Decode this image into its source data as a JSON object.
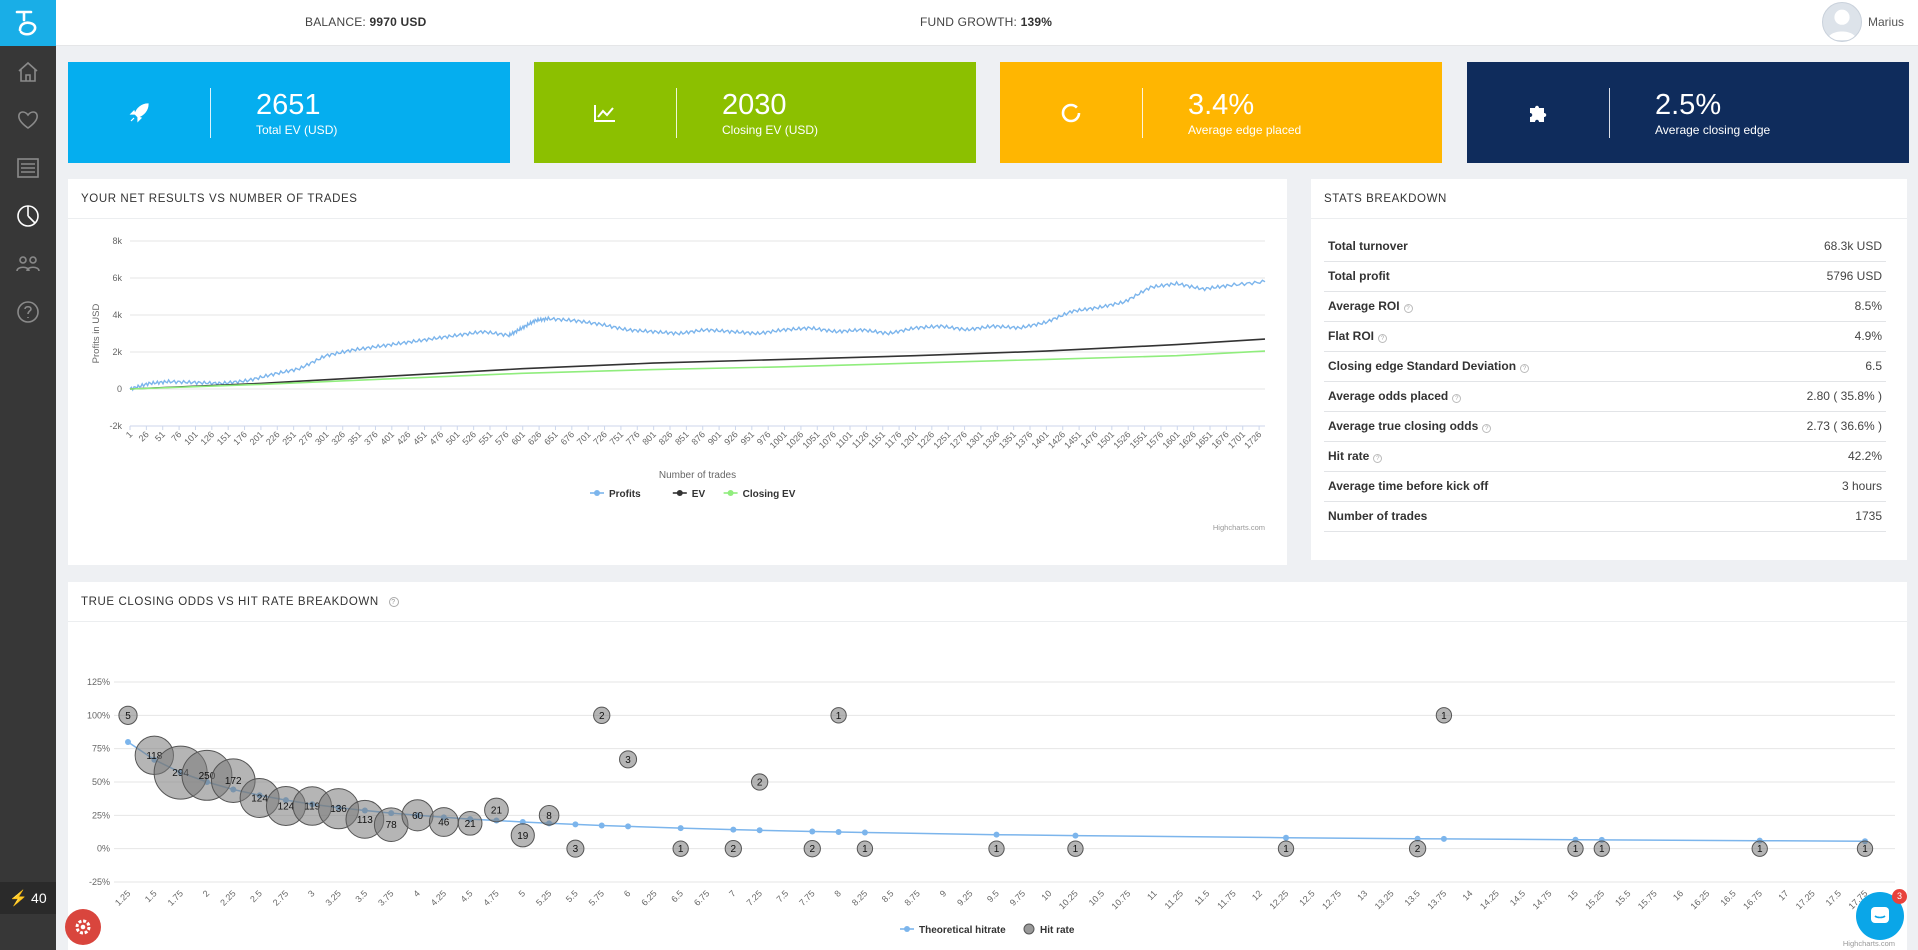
{
  "header": {
    "balance_label": "BALANCE:",
    "balance_value": "9970 USD",
    "growth_label": "FUND GROWTH:",
    "growth_value": "139%",
    "user_name": "Marius"
  },
  "sidebar": {
    "items": [
      {
        "icon": "home-icon"
      },
      {
        "icon": "heart-icon"
      },
      {
        "icon": "list-icon"
      },
      {
        "icon": "pie-chart-icon",
        "active": true
      },
      {
        "icon": "group-icon"
      },
      {
        "icon": "help-icon"
      }
    ],
    "credit_value": "40"
  },
  "kpis": [
    {
      "value": "2651",
      "label": "Total EV (USD)",
      "color": "#05aeef",
      "icon": "rocket-icon"
    },
    {
      "value": "2030",
      "label": "Closing EV (USD)",
      "color": "#8cc000",
      "icon": "line-chart-icon"
    },
    {
      "value": "3.4%",
      "label": "Average edge placed",
      "color": "#ffb601",
      "icon": "circle-icon"
    },
    {
      "value": "2.5%",
      "label": "Average closing edge",
      "color": "#0f2c5c",
      "icon": "puzzle-icon"
    }
  ],
  "net_results": {
    "title": "YOUR NET RESULTS VS NUMBER OF TRADES",
    "credits": "Highcharts.com"
  },
  "stats": {
    "title": "STATS BREAKDOWN",
    "rows": [
      {
        "label": "Total turnover",
        "value": "68.3k USD",
        "help": false
      },
      {
        "label": "Total profit",
        "value": "5796 USD",
        "help": false
      },
      {
        "label": "Average ROI",
        "value": "8.5%",
        "help": true
      },
      {
        "label": "Flat ROI",
        "value": "4.9%",
        "help": true
      },
      {
        "label": "Closing edge Standard Deviation",
        "value": "6.5",
        "help": true
      },
      {
        "label": "Average odds placed",
        "value": "2.80 ( 35.8% )",
        "help": true
      },
      {
        "label": "Average true closing odds",
        "value": "2.73 ( 36.6% )",
        "help": true
      },
      {
        "label": "Hit rate",
        "value": "42.2%",
        "help": true
      },
      {
        "label": "Average time before kick off",
        "value": "3 hours",
        "help": false
      },
      {
        "label": "Number of trades",
        "value": "1735",
        "help": false
      }
    ]
  },
  "odds_hitrate": {
    "title": "TRUE CLOSING ODDS VS HIT RATE BREAKDOWN",
    "credits": "Highcharts.com"
  },
  "chat_badge": "3",
  "chart_data": [
    {
      "type": "line",
      "ylabel": "Profits in USD",
      "xlabel": "Number of trades",
      "ylim": [
        -2000,
        8000
      ],
      "y_ticks": [
        -2000,
        0,
        2000,
        4000,
        6000,
        8000
      ],
      "y_tick_labels": [
        "-2k",
        "0",
        "2k",
        "4k",
        "6k",
        "8k"
      ],
      "x_range": [
        1,
        1735
      ],
      "x_tick_labels": [
        "1",
        "26",
        "51",
        "76",
        "101",
        "126",
        "151",
        "176",
        "201",
        "226",
        "251",
        "276",
        "301",
        "326",
        "351",
        "376",
        "401",
        "426",
        "451",
        "476",
        "501",
        "526",
        "551",
        "576",
        "601",
        "626",
        "651",
        "676",
        "701",
        "726",
        "751",
        "776",
        "801",
        "826",
        "851",
        "876",
        "901",
        "926",
        "951",
        "976",
        "1001",
        "1026",
        "1051",
        "1076",
        "1101",
        "1126",
        "1151",
        "1176",
        "1201",
        "1226",
        "1251",
        "1276",
        "1301",
        "1326",
        "1351",
        "1376",
        "1401",
        "1426",
        "1451",
        "1476",
        "1501",
        "1526",
        "1551",
        "1576",
        "1601",
        "1626",
        "1651",
        "1676",
        "1701",
        "1726"
      ],
      "grid": true,
      "legend": "bottom-center",
      "series": [
        {
          "name": "Profits",
          "color": "#7cb5ec",
          "x": [
            1,
            30,
            60,
            100,
            140,
            180,
            220,
            260,
            300,
            340,
            380,
            420,
            460,
            500,
            540,
            580,
            600,
            620,
            640,
            680,
            720,
            760,
            800,
            840,
            880,
            920,
            960,
            1000,
            1040,
            1080,
            1120,
            1160,
            1200,
            1240,
            1280,
            1320,
            1360,
            1400,
            1440,
            1480,
            1520,
            1560,
            1600,
            1640,
            1680,
            1735
          ],
          "y": [
            0,
            300,
            400,
            350,
            300,
            450,
            800,
            1100,
            1800,
            2100,
            2300,
            2500,
            2700,
            2900,
            3100,
            2900,
            3300,
            3700,
            3800,
            3700,
            3500,
            3200,
            3100,
            3000,
            3200,
            3100,
            3000,
            3200,
            3300,
            3100,
            3200,
            3000,
            3300,
            3400,
            3200,
            3400,
            3300,
            3600,
            4200,
            4400,
            4700,
            5500,
            5700,
            5400,
            5600,
            5800
          ]
        },
        {
          "name": "EV",
          "color": "#333333",
          "x": [
            1,
            200,
            400,
            600,
            800,
            1000,
            1200,
            1400,
            1600,
            1735
          ],
          "y": [
            0,
            300,
            700,
            1100,
            1400,
            1600,
            1800,
            2050,
            2400,
            2700
          ]
        },
        {
          "name": "Closing EV",
          "color": "#90ed7d",
          "x": [
            1,
            200,
            400,
            600,
            800,
            1000,
            1200,
            1400,
            1600,
            1735
          ],
          "y": [
            0,
            250,
            550,
            850,
            1050,
            1200,
            1400,
            1600,
            1800,
            2050
          ]
        }
      ]
    },
    {
      "type": "scatter",
      "ylim": [
        -25,
        125
      ],
      "y_ticks": [
        -25,
        0,
        25,
        50,
        75,
        100,
        125
      ],
      "y_tick_labels": [
        "-25%",
        "0%",
        "25%",
        "50%",
        "75%",
        "100%",
        "125%"
      ],
      "x_range": [
        1.25,
        17.75
      ],
      "x_tick_labels": [
        "1.25",
        "1.5",
        "1.75",
        "2",
        "2.25",
        "2.5",
        "2.75",
        "3",
        "3.25",
        "3.5",
        "3.75",
        "4",
        "4.25",
        "4.5",
        "4.75",
        "5",
        "5.25",
        "5.5",
        "5.75",
        "6",
        "6.25",
        "6.5",
        "6.75",
        "7",
        "7.25",
        "7.5",
        "7.75",
        "8",
        "8.25",
        "8.5",
        "8.75",
        "9",
        "9.25",
        "9.5",
        "9.75",
        "10",
        "10.25",
        "10.5",
        "10.75",
        "11",
        "11.25",
        "11.5",
        "11.75",
        "12",
        "12.25",
        "12.5",
        "12.75",
        "13",
        "13.25",
        "13.5",
        "13.75",
        "14",
        "14.25",
        "14.5",
        "14.75",
        "15",
        "15.25",
        "15.5",
        "15.75",
        "16",
        "16.25",
        "16.5",
        "16.75",
        "17",
        "17.25",
        "17.5",
        "17.75"
      ],
      "grid": true,
      "legend": "bottom-center",
      "series": [
        {
          "name": "Theoretical hitrate",
          "color": "#7cb5ec",
          "x": [
            1.25,
            1.5,
            1.75,
            2,
            2.25,
            2.5,
            2.75,
            3,
            3.25,
            3.5,
            3.75,
            4,
            4.25,
            4.5,
            4.75,
            5,
            5.25,
            5.5,
            5.75,
            6,
            6.5,
            7,
            7.25,
            7.75,
            8,
            8.25,
            9.5,
            10.25,
            12.25,
            13.5,
            13.75,
            15,
            15.25,
            16.75,
            17.75
          ],
          "y": [
            80,
            66.7,
            57.1,
            50,
            44.4,
            40,
            36.4,
            33.3,
            30.8,
            28.6,
            26.7,
            25,
            23.5,
            22.2,
            21.1,
            20,
            19,
            18.2,
            17.4,
            16.7,
            15.4,
            14.3,
            13.8,
            12.9,
            12.5,
            12.1,
            10.5,
            9.8,
            8.2,
            7.4,
            7.3,
            6.7,
            6.6,
            6,
            5.6
          ]
        },
        {
          "name": "Hit rate",
          "color": "#808080",
          "points": [
            {
              "x": 1.25,
              "y": 100,
              "n": "5"
            },
            {
              "x": 1.5,
              "y": 70,
              "n": "118"
            },
            {
              "x": 1.75,
              "y": 57,
              "n": "294"
            },
            {
              "x": 2,
              "y": 55,
              "n": "250"
            },
            {
              "x": 2.25,
              "y": 51,
              "n": "172"
            },
            {
              "x": 2.5,
              "y": 38,
              "n": "124"
            },
            {
              "x": 2.75,
              "y": 32,
              "n": "124"
            },
            {
              "x": 3,
              "y": 32,
              "n": "119"
            },
            {
              "x": 3.25,
              "y": 30,
              "n": "136"
            },
            {
              "x": 3.5,
              "y": 22,
              "n": "113"
            },
            {
              "x": 3.75,
              "y": 18,
              "n": "78"
            },
            {
              "x": 4,
              "y": 25,
              "n": "60"
            },
            {
              "x": 4.25,
              "y": 20,
              "n": "46"
            },
            {
              "x": 4.5,
              "y": 19,
              "n": "21"
            },
            {
              "x": 4.75,
              "y": 29,
              "n": "21"
            },
            {
              "x": 5,
              "y": 10,
              "n": "19"
            },
            {
              "x": 5.25,
              "y": 25,
              "n": "8"
            },
            {
              "x": 5.5,
              "y": 0,
              "n": "3"
            },
            {
              "x": 5.75,
              "y": 100,
              "n": "2"
            },
            {
              "x": 6,
              "y": 67,
              "n": "3"
            },
            {
              "x": 6.5,
              "y": 0,
              "n": "1"
            },
            {
              "x": 7,
              "y": 0,
              "n": "2"
            },
            {
              "x": 7.25,
              "y": 50,
              "n": "2"
            },
            {
              "x": 7.75,
              "y": 0,
              "n": "2"
            },
            {
              "x": 8,
              "y": 100,
              "n": "1"
            },
            {
              "x": 8.25,
              "y": 0,
              "n": "1"
            },
            {
              "x": 9.5,
              "y": 0,
              "n": "1"
            },
            {
              "x": 10.25,
              "y": 0,
              "n": "1"
            },
            {
              "x": 12.25,
              "y": 0,
              "n": "1"
            },
            {
              "x": 13.5,
              "y": 0,
              "n": "2"
            },
            {
              "x": 13.75,
              "y": 100,
              "n": "1"
            },
            {
              "x": 15,
              "y": 0,
              "n": "1"
            },
            {
              "x": 15.25,
              "y": 0,
              "n": "1"
            },
            {
              "x": 16.75,
              "y": 0,
              "n": "1"
            },
            {
              "x": 17.75,
              "y": 0,
              "n": "1"
            }
          ]
        }
      ]
    }
  ]
}
